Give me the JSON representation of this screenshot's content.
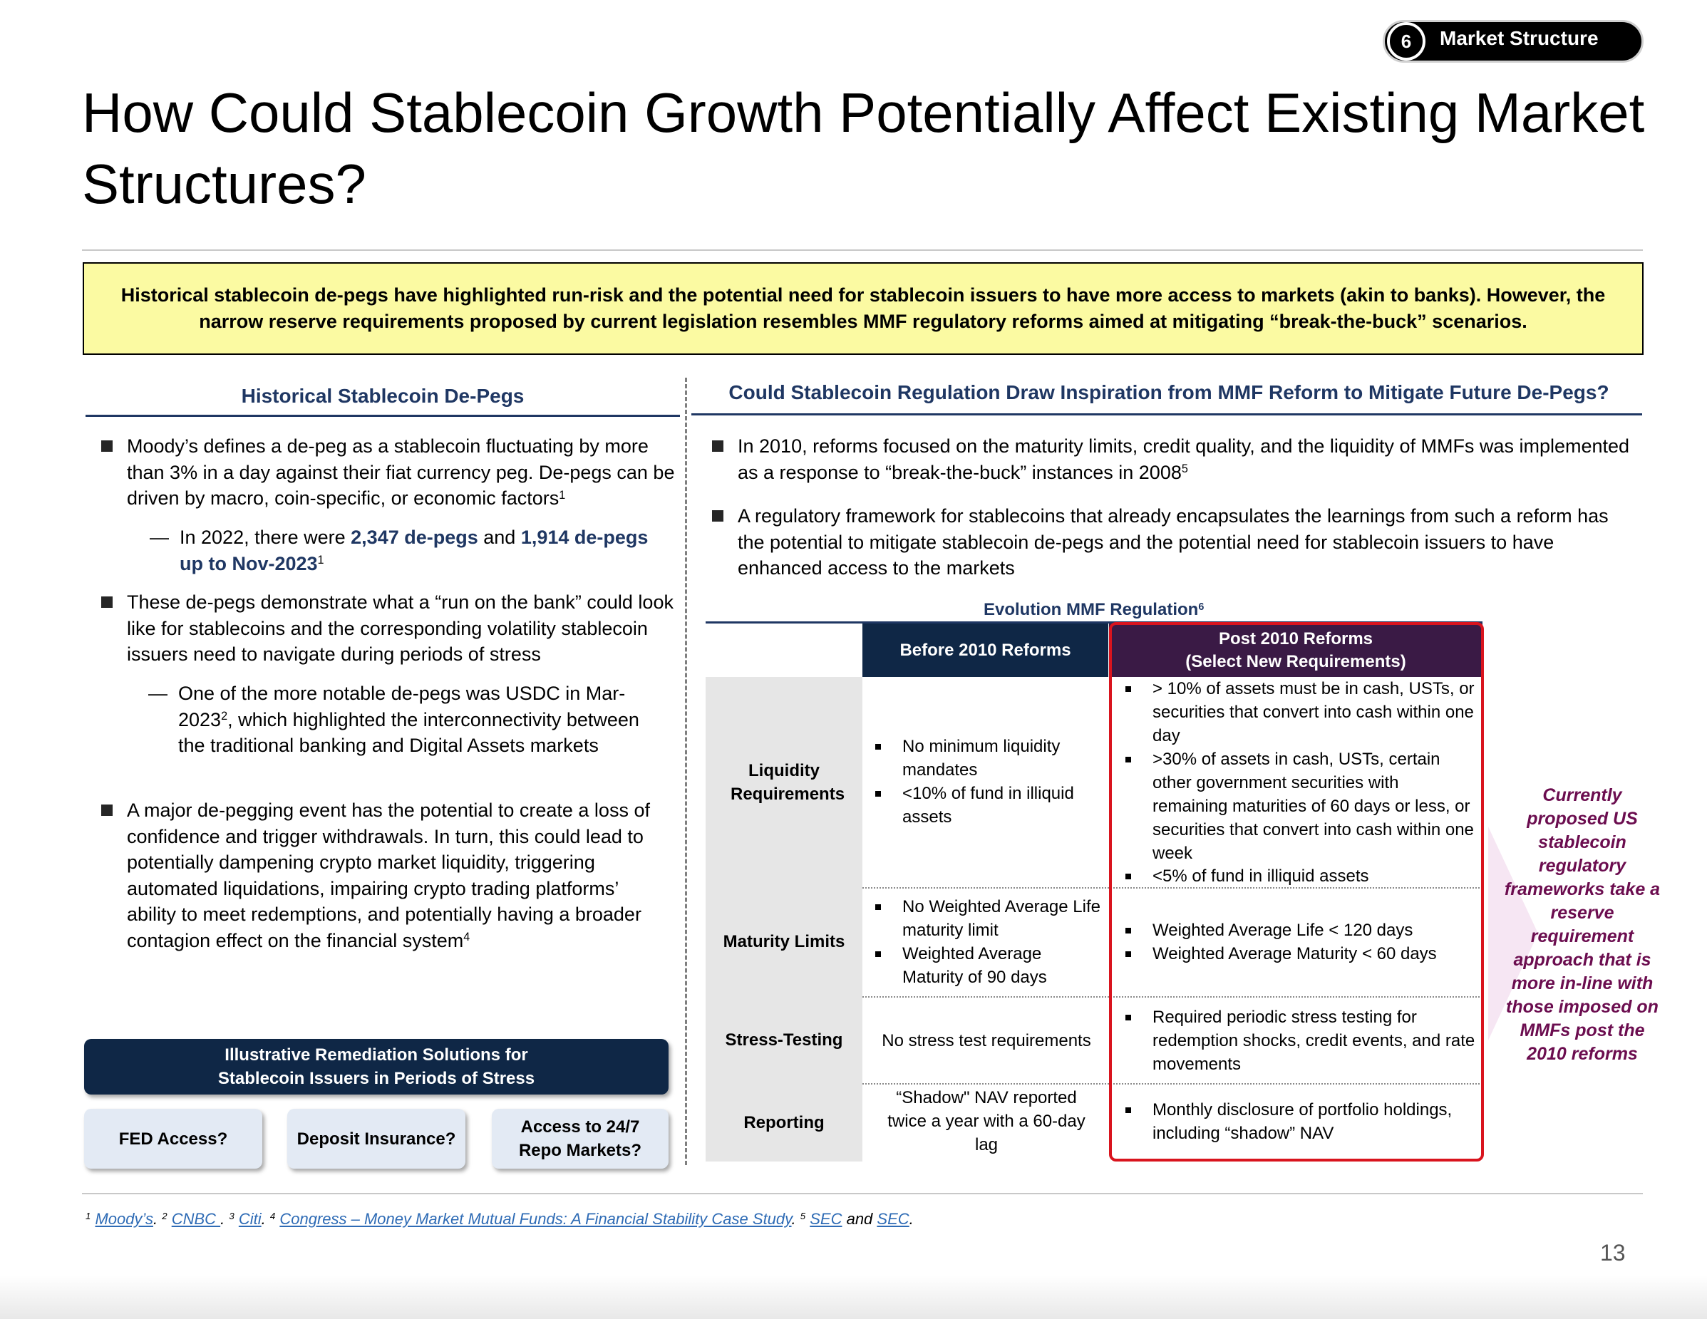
{
  "badge": {
    "number": "6",
    "label": "Market Structure"
  },
  "title": "How Could Stablecoin Growth Potentially Affect Existing Market Structures?",
  "callout": "Historical stablecoin de-pegs have highlighted run-risk and the potential need for stablecoin issuers to have more access to markets (akin to banks). However, the narrow reserve requirements proposed by current legislation resembles MMF regulatory reforms aimed at mitigating “break-the-buck” scenarios.",
  "left": {
    "heading": "Historical Stablecoin De-Pegs",
    "b1": "Moody’s defines a de-peg as a stablecoin fluctuating by more than 3% in a day against their fiat currency peg. De-pegs can be driven by macro, coin-specific, or economic factors",
    "b1_sup": "1",
    "s1_pre": "In 2022, there were ",
    "s1_hl1": "2,347 de-pegs",
    "s1_mid": " and ",
    "s1_hl2": "1,914 de-pegs up to Nov-2023",
    "s1_sup": "1",
    "b2": "These de-pegs demonstrate what a “run on the bank” could look like for stablecoins and the corresponding volatility stablecoin issuers need to navigate during periods of stress",
    "s2_pre": "One of the more notable de-pegs was USDC in Mar-2023",
    "s2_sup": "2",
    "s2_post": ", which highlighted the interconnectivity between the traditional banking and Digital Assets markets",
    "b3": "A major de-pegging event has the potential to create a loss of confidence and trigger withdrawals. In turn, this could lead to potentially dampening crypto market liquidity, triggering automated liquidations, impairing crypto trading platforms’ ability to meet redemptions, and potentially having a broader contagion effect on the financial system",
    "b3_sup": "4"
  },
  "remediation": {
    "heading": "Illustrative Remediation Solutions for Stablecoin Issuers in Periods of Stress",
    "options": [
      "FED Access?",
      "Deposit Insurance?",
      "Access to 24/7 Repo Markets?"
    ]
  },
  "right": {
    "heading": "Could Stablecoin Regulation Draw Inspiration from MMF Reform to Mitigate Future De-Pegs?",
    "b1": "In 2010, reforms focused on the maturity limits, credit quality, and the liquidity of MMFs was implemented as a response to “break-the-buck” instances in 2008",
    "b1_sup": "5",
    "b2": "A regulatory framework for stablecoins that already encapsulates the learnings from such a reform has the potential to mitigate stablecoin de-pegs and the potential need for stablecoin issuers to have enhanced access to the markets"
  },
  "table": {
    "title": "Evolution MMF Regulation",
    "title_sup": "6",
    "col_before": "Before 2010 Reforms",
    "col_post_1": "Post 2010 Reforms",
    "col_post_2": "(Select New Requirements)",
    "rows": {
      "liquidity": {
        "label": "Liquidity Requirements",
        "before": [
          "No minimum liquidity mandates",
          "<10% of fund in illiquid assets"
        ],
        "post": [
          "> 10% of assets must be in cash, USTs, or securities that convert into cash within one day",
          ">30% of assets in cash, USTs, certain other government securities with remaining maturities of 60 days or less, or securities that convert into cash within one week",
          "<5% of fund in illiquid assets"
        ]
      },
      "maturity": {
        "label": "Maturity Limits",
        "before": [
          "No Weighted Average Life maturity limit",
          "Weighted Average Maturity of 90 days"
        ],
        "post": [
          "Weighted Average Life < 120 days",
          "Weighted Average Maturity < 60 days"
        ]
      },
      "stress": {
        "label": "Stress-Testing",
        "before_text": "No stress test requirements",
        "post": [
          "Required periodic stress testing for redemption shocks, credit events, and rate movements"
        ]
      },
      "reporting": {
        "label": "Reporting",
        "before_text": "“Shadow\" NAV reported twice a year with a 60-day lag",
        "post": [
          "Monthly disclosure of portfolio holdings, including “shadow” NAV"
        ]
      }
    }
  },
  "side_note": "Currently proposed US stablecoin regulatory frameworks take a reserve requirement approach that is more in-line with those imposed on MMFs post the 2010 reforms",
  "footnotes": {
    "n1": "1",
    "l1": "Moody’s",
    "n2": "2",
    "l2": "CNBC ",
    "n3": "3",
    "l3": "Citi",
    "n4": "4",
    "l4": "Congress – Money Market Mutual Funds: A Financial Stability Case Study",
    "n5": "5",
    "l5a": "SEC",
    "and": " and ",
    "l5b": "SEC"
  },
  "page_number": "13",
  "colors": {
    "navy": "#1f3763",
    "dark_navy": "#0f2746",
    "plum": "#3a1a45",
    "callout_yellow": "#fbfaa2",
    "highlight_red": "#d9141e",
    "note_magenta": "#6b0d4f"
  }
}
